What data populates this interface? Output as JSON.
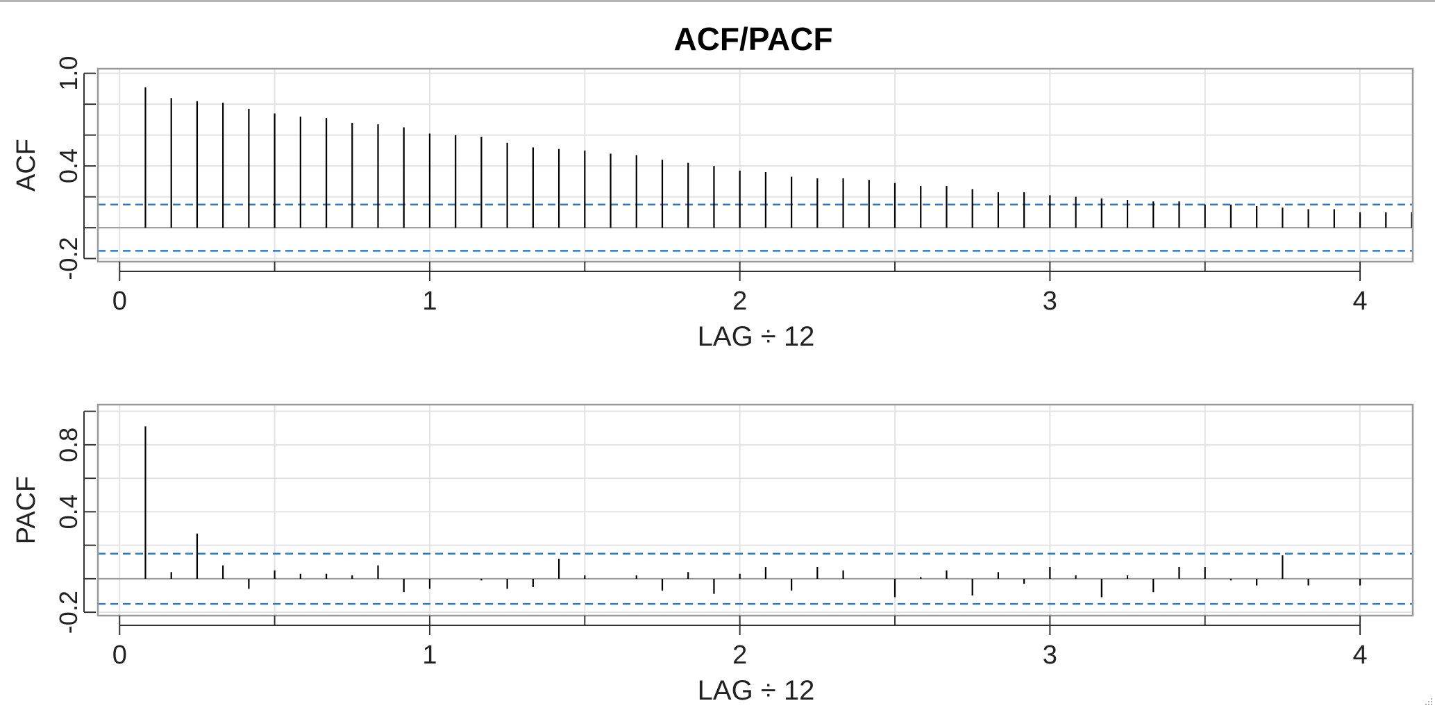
{
  "title": "ACF/PACF",
  "colors": {
    "background": "#ffffff",
    "grid": "#e3e3e3",
    "frame": "#999999",
    "axis": "#333333",
    "bars": "#000000",
    "zero_line": "#999999",
    "confidence": "#2b7bd0"
  },
  "chart_data": [
    {
      "type": "bar",
      "ylabel": "ACF",
      "xlabel": "LAG ÷ 12",
      "xlim": [
        -0.07,
        4.17
      ],
      "ylim": [
        -0.22,
        1.03
      ],
      "xticks": [
        0,
        1,
        2,
        3,
        4
      ],
      "xminor": [
        0.5,
        1.5,
        2.5,
        3.5
      ],
      "yticks": [
        1.0,
        0.8,
        0.6,
        0.4,
        0.2,
        0.0,
        -0.2
      ],
      "yticklabels": [
        "1.0",
        "",
        "",
        "0.4",
        "",
        "",
        "-0.2"
      ],
      "confidence": [
        0.15,
        -0.15
      ],
      "grid": true,
      "lag_step": 0.0833333,
      "values": [
        0.91,
        0.84,
        0.82,
        0.81,
        0.77,
        0.74,
        0.72,
        0.71,
        0.68,
        0.67,
        0.65,
        0.61,
        0.6,
        0.59,
        0.55,
        0.52,
        0.51,
        0.5,
        0.48,
        0.47,
        0.44,
        0.42,
        0.4,
        0.37,
        0.36,
        0.33,
        0.32,
        0.32,
        0.31,
        0.29,
        0.27,
        0.27,
        0.25,
        0.23,
        0.23,
        0.21,
        0.2,
        0.19,
        0.18,
        0.17,
        0.17,
        0.15,
        0.15,
        0.14,
        0.13,
        0.12,
        0.12,
        0.1,
        0.1,
        0.1,
        0.1,
        0.08
      ]
    },
    {
      "type": "bar",
      "ylabel": "PACF",
      "xlabel": "LAG ÷ 12",
      "xlim": [
        -0.07,
        4.17
      ],
      "ylim": [
        -0.22,
        1.04
      ],
      "xticks": [
        0,
        1,
        2,
        3,
        4
      ],
      "xminor": [
        0.5,
        1.5,
        2.5,
        3.5
      ],
      "yticks": [
        1.0,
        0.8,
        0.6,
        0.4,
        0.2,
        0.0,
        -0.2
      ],
      "yticklabels": [
        "",
        "0.8",
        "",
        "0.4",
        "",
        "",
        "-0.2"
      ],
      "confidence": [
        0.15,
        -0.15
      ],
      "grid": true,
      "lag_step": 0.0833333,
      "values": [
        0.91,
        0.04,
        0.27,
        0.08,
        -0.06,
        0.05,
        0.03,
        0.03,
        0.02,
        0.08,
        -0.08,
        -0.06,
        0.0,
        -0.01,
        -0.06,
        -0.05,
        0.12,
        0.02,
        0.0,
        0.02,
        -0.07,
        0.04,
        -0.09,
        0.03,
        0.07,
        -0.07,
        0.07,
        0.05,
        0.0,
        -0.11,
        0.01,
        0.05,
        -0.1,
        0.04,
        -0.03,
        0.07,
        0.02,
        -0.11,
        0.02,
        -0.08,
        0.07,
        0.07,
        -0.01,
        -0.04,
        0.14,
        -0.04,
        0.0,
        -0.04
      ]
    }
  ]
}
